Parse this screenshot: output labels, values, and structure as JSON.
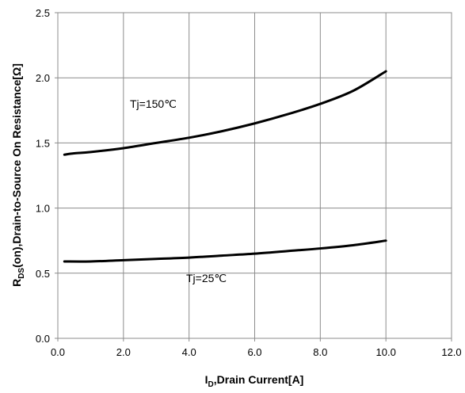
{
  "chart_data": {
    "type": "line",
    "xlabel_main": "I",
    "xlabel_sub": "D",
    "xlabel_rest": ",Drain Current[A]",
    "ylabel_main": "R",
    "ylabel_sub": "DS",
    "ylabel_rest": "(on),Drain-to-Source On Resistance[Ω]",
    "xlim": [
      0,
      12
    ],
    "ylim": [
      0,
      2.5
    ],
    "xticks": [
      "0.0",
      "2.0",
      "4.0",
      "6.0",
      "8.0",
      "10.0",
      "12.0"
    ],
    "yticks": [
      "0.0",
      "0.5",
      "1.0",
      "1.5",
      "2.0",
      "2.5"
    ],
    "grid": true,
    "series": [
      {
        "name": "Tj=150℃",
        "x": [
          0.2,
          0.5,
          1,
          2,
          3,
          4,
          5,
          6,
          7,
          8,
          9,
          10
        ],
        "y": [
          1.41,
          1.42,
          1.43,
          1.46,
          1.5,
          1.54,
          1.59,
          1.65,
          1.72,
          1.8,
          1.9,
          2.05
        ]
      },
      {
        "name": "Tj=25℃",
        "x": [
          0.2,
          1,
          2,
          3,
          4,
          5,
          6,
          7,
          8,
          9,
          10
        ],
        "y": [
          0.59,
          0.59,
          0.6,
          0.61,
          0.62,
          0.635,
          0.65,
          0.67,
          0.69,
          0.715,
          0.75
        ]
      }
    ]
  }
}
